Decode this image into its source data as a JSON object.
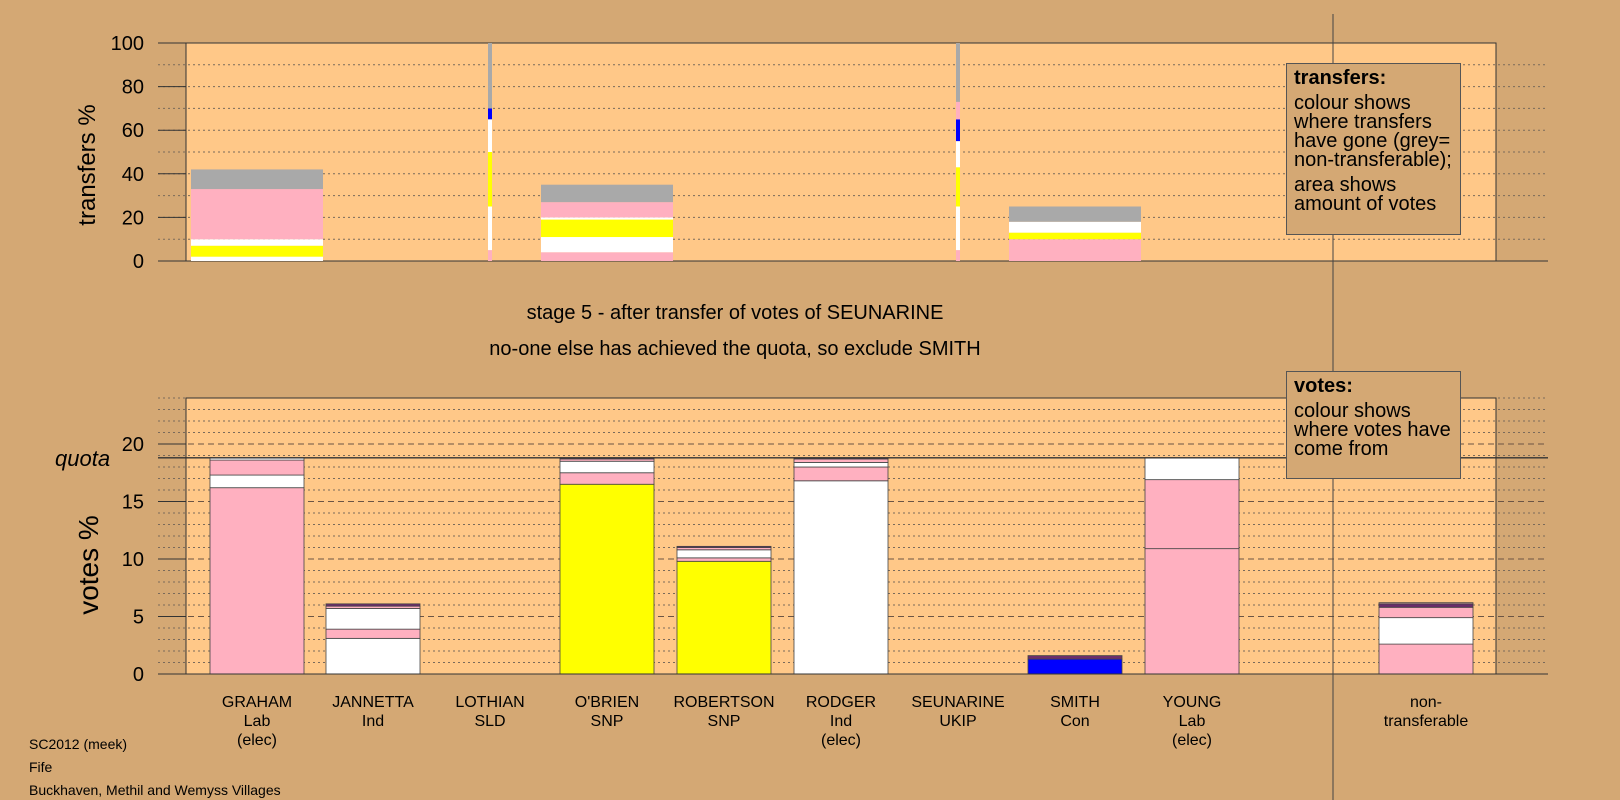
{
  "chart_data": [
    {
      "type": "bar",
      "stacked": true,
      "ylabel": "transfers %",
      "ylim": [
        0,
        100
      ],
      "yticks": [
        0,
        20,
        40,
        60,
        80,
        100
      ],
      "categories": [
        "GRAHAM",
        "JANNETTA",
        "LOTHIAN",
        "O'BRIEN",
        "ROBERTSON",
        "RODGER",
        "SEUNARINE",
        "SMITH",
        "YOUNG",
        "non-transferable"
      ],
      "bars": [
        {
          "category": "GRAHAM",
          "segments": [
            {
              "color": "#ffffff",
              "value": 2
            },
            {
              "color": "#ffff00",
              "value": 5
            },
            {
              "color": "#ffffff",
              "value": 3
            },
            {
              "color": "#ffb0c0",
              "value": 23
            },
            {
              "color": "#a9a9a9",
              "value": 9
            }
          ]
        },
        {
          "category": "O'BRIEN",
          "segments": [
            {
              "color": "#ffb0c0",
              "value": 4
            },
            {
              "color": "#ffffff",
              "value": 7
            },
            {
              "color": "#ffff00",
              "value": 8
            },
            {
              "color": "#ffffff",
              "value": 1
            },
            {
              "color": "#ffb0c0",
              "value": 7
            },
            {
              "color": "#a9a9a9",
              "value": 8
            }
          ]
        },
        {
          "category": "SMITH",
          "segments": [
            {
              "color": "#ffb0c0",
              "value": 10
            },
            {
              "color": "#ffff00",
              "value": 3
            },
            {
              "color": "#ffffff",
              "value": 5
            },
            {
              "color": "#a9a9a9",
              "value": 7
            }
          ]
        }
      ],
      "thin_bars": [
        {
          "category": "LOTHIAN",
          "segments": [
            {
              "color": "#ffb0c0",
              "value": 5
            },
            {
              "color": "#ffffff",
              "value": 20
            },
            {
              "color": "#ffff00",
              "value": 25
            },
            {
              "color": "#ffffff",
              "value": 15
            },
            {
              "color": "#0000ff",
              "value": 5
            },
            {
              "color": "#a9a9a9",
              "value": 30
            }
          ]
        },
        {
          "category": "SEUNARINE",
          "segments": [
            {
              "color": "#ffb0c0",
              "value": 5
            },
            {
              "color": "#ffffff",
              "value": 20
            },
            {
              "color": "#ffff00",
              "value": 18
            },
            {
              "color": "#ffffff",
              "value": 12
            },
            {
              "color": "#0000ff",
              "value": 10
            },
            {
              "color": "#ffb0c0",
              "value": 8
            },
            {
              "color": "#a9a9a9",
              "value": 27
            }
          ]
        }
      ]
    },
    {
      "type": "bar",
      "stacked": true,
      "ylabel": "votes %",
      "ylim": [
        0,
        24
      ],
      "yticks": [
        0,
        5,
        10,
        15,
        20
      ],
      "quota": 18.8,
      "quota_label": "quota",
      "categories": [
        {
          "name": "GRAHAM",
          "party": "Lab",
          "note": "(elec)"
        },
        {
          "name": "JANNETTA",
          "party": "Ind",
          "note": ""
        },
        {
          "name": "LOTHIAN",
          "party": "SLD",
          "note": ""
        },
        {
          "name": "O'BRIEN",
          "party": "SNP",
          "note": ""
        },
        {
          "name": "ROBERTSON",
          "party": "SNP",
          "note": ""
        },
        {
          "name": "RODGER",
          "party": "Ind",
          "note": "(elec)"
        },
        {
          "name": "SEUNARINE",
          "party": "UKIP",
          "note": ""
        },
        {
          "name": "SMITH",
          "party": "Con",
          "note": ""
        },
        {
          "name": "YOUNG",
          "party": "Lab",
          "note": "(elec)"
        },
        {
          "name": "non-",
          "party": "transferable",
          "note": ""
        }
      ],
      "bars": [
        {
          "category": "GRAHAM",
          "segments": [
            {
              "color": "#ffb0c0",
              "value": 16.2
            },
            {
              "color": "#ffffff",
              "value": 1.1
            },
            {
              "color": "#ffb0c0",
              "value": 1.3
            },
            {
              "color": "#ffffff",
              "value": 0.2
            }
          ]
        },
        {
          "category": "JANNETTA",
          "segments": [
            {
              "color": "#ffffff",
              "value": 3.1
            },
            {
              "color": "#ffb0c0",
              "value": 0.8
            },
            {
              "color": "#ffffff",
              "value": 1.8
            },
            {
              "color": "#ffb0c0",
              "value": 0.2
            },
            {
              "color": "#6b2c6b",
              "value": 0.2
            }
          ]
        },
        {
          "category": "LOTHIAN",
          "segments": []
        },
        {
          "category": "O'BRIEN",
          "segments": [
            {
              "color": "#ffff00",
              "value": 16.5
            },
            {
              "color": "#ffb0c0",
              "value": 1.0
            },
            {
              "color": "#ffffff",
              "value": 1.0
            },
            {
              "color": "#ffb0c0",
              "value": 0.2
            },
            {
              "color": "#6b2c6b",
              "value": 0.1
            }
          ]
        },
        {
          "category": "ROBERTSON",
          "segments": [
            {
              "color": "#ffff00",
              "value": 9.8
            },
            {
              "color": "#ffb0c0",
              "value": 0.3
            },
            {
              "color": "#ffffff",
              "value": 0.7
            },
            {
              "color": "#ffb0c0",
              "value": 0.2
            },
            {
              "color": "#6b2c6b",
              "value": 0.1
            }
          ]
        },
        {
          "category": "RODGER",
          "segments": [
            {
              "color": "#ffffff",
              "value": 16.8
            },
            {
              "color": "#ffb0c0",
              "value": 1.2
            },
            {
              "color": "#ffffff",
              "value": 0.4
            },
            {
              "color": "#ffb0c0",
              "value": 0.3
            },
            {
              "color": "#6b2c6b",
              "value": 0.1
            }
          ]
        },
        {
          "category": "SEUNARINE",
          "segments": []
        },
        {
          "category": "SMITH",
          "segments": [
            {
              "color": "#0000ff",
              "value": 1.3
            },
            {
              "color": "#6b2c6b",
              "value": 0.3
            }
          ]
        },
        {
          "category": "YOUNG",
          "segments": [
            {
              "color": "#ffb0c0",
              "value": 10.9
            },
            {
              "color": "#ffb0c0",
              "value": 6.0
            },
            {
              "color": "#ffffff",
              "value": 1.9
            }
          ]
        },
        {
          "category": "non-transferable",
          "segments": [
            {
              "color": "#ffb0c0",
              "value": 2.6
            },
            {
              "color": "#ffffff",
              "value": 2.3
            },
            {
              "color": "#ffb0c0",
              "value": 0.9
            },
            {
              "color": "#6b2c6b",
              "value": 0.3
            },
            {
              "color": "#ffb0c0",
              "value": 0.1
            }
          ]
        }
      ]
    }
  ],
  "captions": {
    "stage": "stage 5 - after transfer of votes of SEUNARINE",
    "action": "no-one else has achieved the quota, so exclude SMITH"
  },
  "legends": {
    "transfers": {
      "title": "transfers:",
      "text1": "colour shows where transfers have gone (grey= non-transferable);",
      "text2": "area shows amount of votes"
    },
    "votes": {
      "title": "votes:",
      "text1": "colour shows where votes have come from"
    }
  },
  "footer": {
    "line1": "SC2012 (meek)",
    "line2": "Fife",
    "line3": "Buckhaven, Methil and Wemyss Villages"
  },
  "colors": {
    "background": "#d4a874",
    "plot": "#ffc888",
    "pink": "#ffb0c0",
    "white": "#ffffff",
    "yellow": "#ffff00",
    "grey": "#a9a9a9",
    "blue": "#0000ff",
    "purple": "#6b2c6b"
  }
}
